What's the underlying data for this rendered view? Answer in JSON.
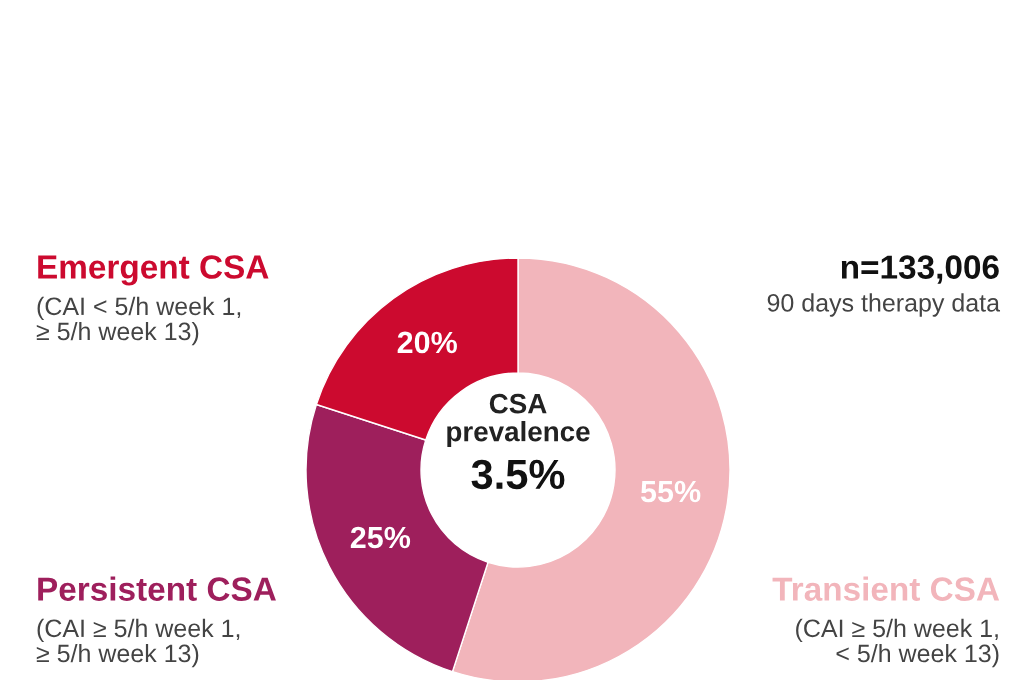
{
  "chart_data": {
    "type": "donut",
    "categories": [
      "Transient CSA",
      "Persistent CSA",
      "Emergent CSA"
    ],
    "values": [
      55,
      25,
      20
    ],
    "colors": [
      "#f2b5bb",
      "#9e1f5c",
      "#cc0a2f"
    ],
    "value_labels": [
      "55%",
      "25%",
      "20%"
    ],
    "annotations": [
      "(CAI ≥ 5/h week 1,\n< 5/h week 13)",
      "(CAI ≥ 5/h week 1,\n≥ 5/h week 13)",
      "(CAI < 5/h week 1,\n≥ 5/h week 13)",
      "CSA\nprevalence",
      "3.5%",
      "n=133,006",
      "90 days therapy data"
    ],
    "legend": false
  }
}
